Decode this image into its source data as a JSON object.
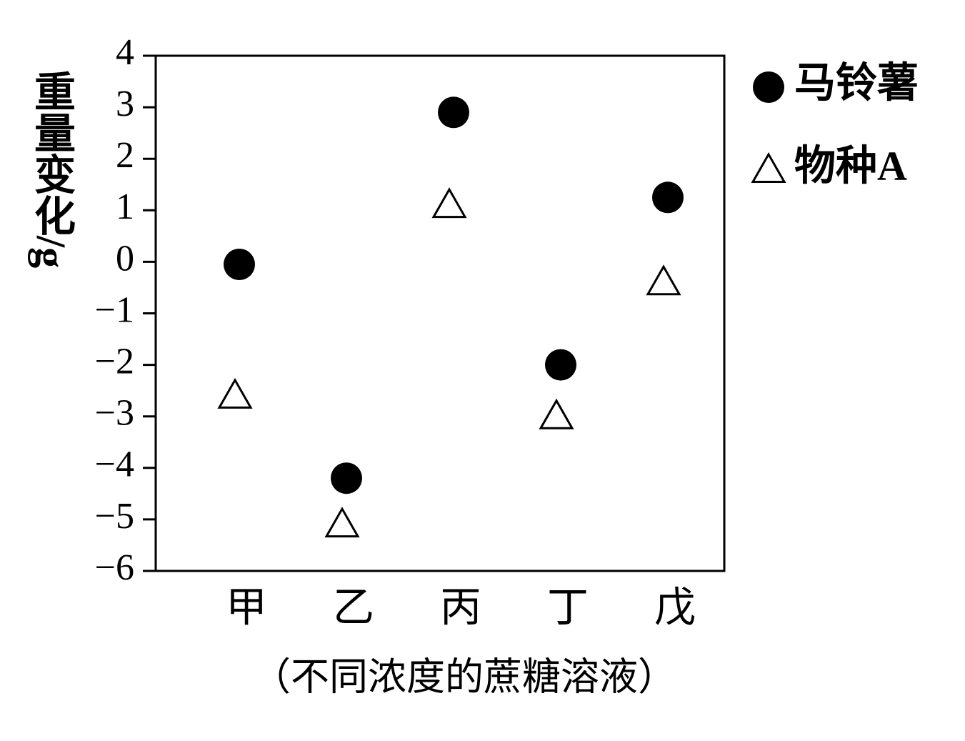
{
  "chart_data": {
    "type": "scatter",
    "xlabel": "（不同浓度的蔗糖溶液）",
    "ylabel": "重量变化/g",
    "categories": [
      "甲",
      "乙",
      "丙",
      "丁",
      "戊"
    ],
    "series": [
      {
        "name": "马铃薯",
        "color": "#000000",
        "marker": "circle",
        "values": [
          -0.05,
          -4.2,
          2.9,
          -2.0,
          1.25
        ]
      },
      {
        "name": "物种A",
        "color": "#000000",
        "marker": "triangle",
        "values": [
          -2.6,
          -5.1,
          1.1,
          -3.0,
          -0.4
        ]
      }
    ],
    "ylim": [
      -6,
      4
    ],
    "yticks": [
      {
        "value": -6,
        "label": "−6"
      },
      {
        "value": -5,
        "label": "−5"
      },
      {
        "value": -4,
        "label": "−4"
      },
      {
        "value": -3,
        "label": "−3"
      },
      {
        "value": -2,
        "label": "−2"
      },
      {
        "value": -1,
        "label": "−1"
      },
      0,
      1,
      2,
      3,
      4
    ],
    "grid": false,
    "legend": "right"
  }
}
